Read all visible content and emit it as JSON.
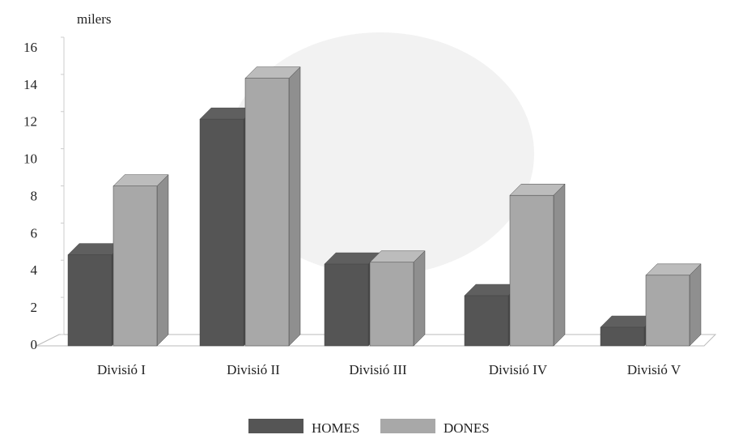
{
  "chart_data": {
    "type": "bar3d",
    "y_label": "milers",
    "categories": [
      "Divisió I",
      "Divisió II",
      "Divisió III",
      "Divisió IV",
      "Divisió V"
    ],
    "series": [
      {
        "name": "HOMES",
        "color": "#555555",
        "values": [
          4.9,
          12.2,
          4.4,
          2.7,
          1.0
        ]
      },
      {
        "name": "DONES",
        "color": "#a8a8a8",
        "values": [
          8.6,
          14.4,
          4.5,
          8.1,
          3.8
        ]
      }
    ],
    "ylim": [
      0,
      16
    ],
    "yticks": [
      0,
      2,
      4,
      6,
      8,
      10,
      12,
      14,
      16
    ],
    "legend": "bottom"
  }
}
